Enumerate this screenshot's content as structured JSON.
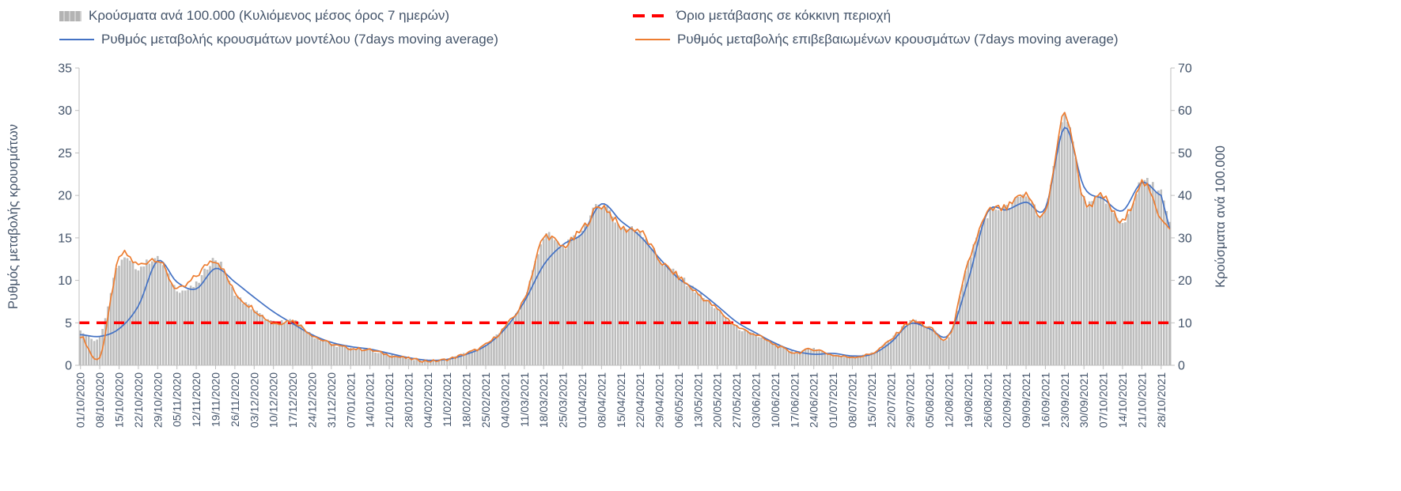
{
  "styles": {
    "background": "#FFFFFF",
    "text_color": "#44546A",
    "axis_line_color": "#BFBFBF"
  },
  "chart_data": {
    "type": "bar",
    "subtype": "combo-daily-bars-with-lines",
    "title": "",
    "x_tick_labels": [
      "01/10/2020",
      "08/10/2020",
      "15/10/2020",
      "22/10/2020",
      "29/10/2020",
      "05/11/2020",
      "12/11/2020",
      "19/11/2020",
      "26/11/2020",
      "03/12/2020",
      "10/12/2020",
      "17/12/2020",
      "24/12/2020",
      "31/12/2020",
      "07/01/2021",
      "14/01/2021",
      "21/01/2021",
      "28/01/2021",
      "04/02/2021",
      "11/02/2021",
      "18/02/2021",
      "25/02/2021",
      "04/03/2021",
      "11/03/2021",
      "18/03/2021",
      "25/03/2021",
      "01/04/2021",
      "08/04/2021",
      "15/04/2021",
      "22/04/2021",
      "29/04/2021",
      "06/05/2021",
      "13/05/2021",
      "20/05/2021",
      "27/05/2021",
      "03/06/2021",
      "10/06/2021",
      "17/06/2021",
      "24/06/2021",
      "01/07/2021",
      "08/07/2021",
      "15/07/2021",
      "22/07/2021",
      "29/07/2021",
      "05/08/2021",
      "12/08/2021",
      "19/08/2021",
      "26/08/2021",
      "02/09/2021",
      "09/09/2021",
      "16/09/2021",
      "23/09/2021",
      "30/09/2021",
      "07/10/2021",
      "14/10/2021",
      "21/10/2021",
      "28/10/2021"
    ],
    "left_axis": {
      "label": "Ρυθμός μεταβολής κρουσμάτων",
      "min": 0,
      "max": 35,
      "ticks": [
        0,
        5,
        10,
        15,
        20,
        25,
        30,
        35
      ]
    },
    "right_axis": {
      "label": "Κρούσματα ανά 100.000",
      "min": 0,
      "max": 70,
      "ticks": [
        0,
        10,
        20,
        30,
        40,
        50,
        60,
        70
      ]
    },
    "threshold": {
      "label": "Όριο μετάβασης σε κόκκινη περιοχή",
      "value": 5,
      "axis": "left",
      "color": "#FF0000",
      "style": "dashed"
    },
    "series": [
      {
        "name": "Κρούσματα ανά 100.000 (Κυλιόμενος μέσος όρος 7 ημερών)",
        "type": "bar",
        "axis": "right",
        "color": "#BFBFBF",
        "values": [
          8,
          7,
          24,
          23,
          25,
          18,
          19,
          25,
          17,
          13,
          10,
          10.5,
          7,
          5,
          4,
          3.5,
          2.5,
          1.6,
          1.0,
          1.4,
          2.8,
          4.8,
          9,
          15.5,
          30,
          28,
          32,
          38,
          32.5,
          31.5,
          25,
          21,
          17,
          13,
          9,
          7,
          5,
          3,
          3.8,
          2.4,
          2.0,
          2.8,
          6,
          10.2,
          8.8,
          6.8,
          24,
          35.5,
          37,
          40,
          36,
          59,
          39,
          39.5,
          33.5,
          43,
          41
        ],
        "end_value": 33
      },
      {
        "name": "Ρυθμός μεταβολής κρουσμάτων μοντέλου (7days moving average)",
        "type": "line",
        "axis": "left",
        "color": "#4472C4",
        "values": [
          3.6,
          3.4,
          4.3,
          7.0,
          12.3,
          9.8,
          9.0,
          11.4,
          9.8,
          8.0,
          6.3,
          4.9,
          3.6,
          2.7,
          2.2,
          1.9,
          1.4,
          0.9,
          0.6,
          0.7,
          1.3,
          2.3,
          4.3,
          7.5,
          11.8,
          14.2,
          15.5,
          19.0,
          17.0,
          15.2,
          12.6,
          10.2,
          8.8,
          7.0,
          5.1,
          3.8,
          2.6,
          1.7,
          1.3,
          1.4,
          1.1,
          1.3,
          2.7,
          4.9,
          4.3,
          3.6,
          10.0,
          18.0,
          18.3,
          19.2,
          18.5,
          28.0,
          21.0,
          19.6,
          18.2,
          21.5,
          20.0
        ],
        "end_value": 16.2
      },
      {
        "name": "Ρυθμός μεταβολής επιβεβαιωμένων κρουσμάτων (7days moving average)",
        "type": "line",
        "axis": "left",
        "color": "#ED7D31",
        "values": [
          3.5,
          1.0,
          12.5,
          11.8,
          12.5,
          9.0,
          10.5,
          12.4,
          8.6,
          6.6,
          5.0,
          5.2,
          3.6,
          2.5,
          2.0,
          1.8,
          1.2,
          0.8,
          0.5,
          0.7,
          1.4,
          2.4,
          4.5,
          7.8,
          15.0,
          14.0,
          16.0,
          18.8,
          16.2,
          15.8,
          12.4,
          10.4,
          8.4,
          6.6,
          4.6,
          3.6,
          2.4,
          1.5,
          1.9,
          1.2,
          1.0,
          1.4,
          3.0,
          5.1,
          4.4,
          3.4,
          12.0,
          17.8,
          18.5,
          20.0,
          18.0,
          29.5,
          19.5,
          19.8,
          16.8,
          21.5,
          17.5
        ],
        "end_value": 16.4
      }
    ],
    "sampling_note": "series values sampled at the weekly x tick positions; bars are daily in the original"
  }
}
